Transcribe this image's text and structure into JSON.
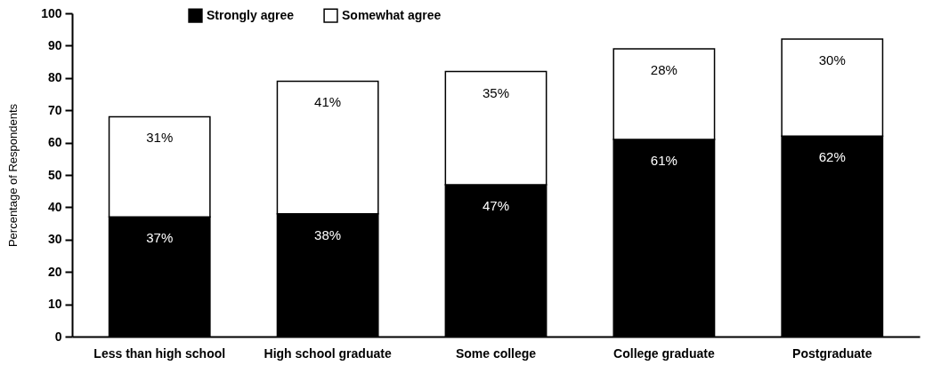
{
  "chart_data": {
    "type": "bar",
    "stacked": true,
    "ylabel": "Percentage of Respondents",
    "categories": [
      "Less than high school",
      "High school graduate",
      "Some college",
      "College graduate",
      "Postgraduate"
    ],
    "series": [
      {
        "name": "Strongly agree",
        "color": "#000000",
        "values": [
          37,
          38,
          47,
          61,
          62
        ],
        "value_labels": [
          "37%",
          "38%",
          "47%",
          "61%",
          "62%"
        ]
      },
      {
        "name": "Somewhat agree",
        "color": "#ffffff",
        "values": [
          31,
          41,
          35,
          28,
          30
        ],
        "value_labels": [
          "31%",
          "41%",
          "35%",
          "28%",
          "30%"
        ]
      }
    ],
    "ylim": [
      0,
      100
    ],
    "yticks": [
      0,
      10,
      20,
      30,
      40,
      50,
      60,
      70,
      80,
      90,
      100
    ],
    "grid": false,
    "legend": "top"
  }
}
